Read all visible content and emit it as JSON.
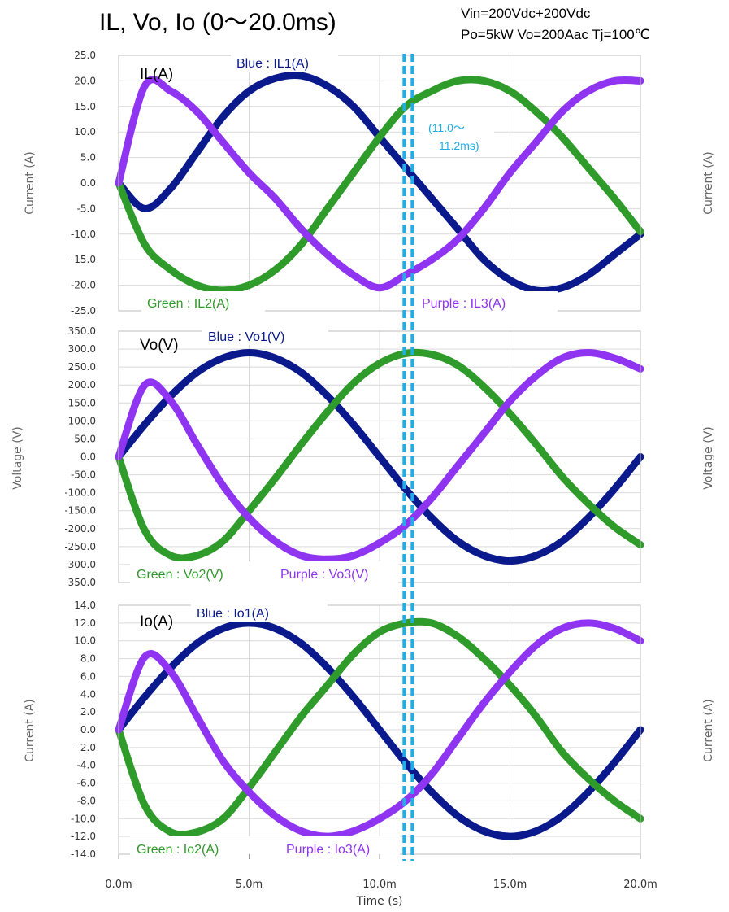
{
  "header": {
    "title": "IL, Vo, Io (0～20.0ms)",
    "conditions_line1": "Vin=200Vdc+200Vdc",
    "conditions_line2": "Po=5kW Vo=200Aac  Tj=100℃"
  },
  "x_axis": {
    "label": "Time (s)",
    "ticks": [
      "0.0m",
      "5.0m",
      "10.0m",
      "15.0m",
      "20.0m"
    ]
  },
  "colors": {
    "blue": "#0a1a8c",
    "green": "#2f9b2a",
    "purple": "#8f35f2",
    "marker": "#1eaee8",
    "grid": "#d9d9d9"
  },
  "marker_window": {
    "label_line1": "(11.0～",
    "label_line2": "11.2ms)",
    "x_range_ms": [
      11.0,
      11.2
    ]
  },
  "panels": [
    {
      "id": "il",
      "title": "IL(A)",
      "ylabel": "Current (A)",
      "right_ylabel": "Current (A)",
      "yticks": [
        "25.0",
        "20.0",
        "15.0",
        "10.0",
        "5.0",
        "0.0",
        "-5.0",
        "-10.0",
        "-15.0",
        "-20.0",
        "-25.0"
      ],
      "legend": {
        "blue": "Blue : IL1(A)",
        "green": "Green : IL2(A)",
        "purple": "Purple : IL3(A)"
      }
    },
    {
      "id": "vo",
      "title": "Vo(V)",
      "ylabel": "Voltage (V)",
      "right_ylabel": "Voltage (V)",
      "yticks": [
        "350.0",
        "300.0",
        "250.0",
        "200.0",
        "150.0",
        "100.0",
        "50.0",
        "0.0",
        "-50.0",
        "-100.0",
        "-150.0",
        "-200.0",
        "-250.0",
        "-300.0",
        "-350.0"
      ],
      "legend": {
        "blue": "Blue : Vo1(V)",
        "green": "Green : Vo2(V)",
        "purple": "Purple : Vo3(V)"
      }
    },
    {
      "id": "io",
      "title": "Io(A)",
      "ylabel": "Current (A)",
      "right_ylabel": "Current (A)",
      "yticks": [
        "14.0",
        "12.0",
        "10.0",
        "8.0",
        "6.0",
        "4.0",
        "2.0",
        "0.0",
        "-2.0",
        "-4.0",
        "-6.0",
        "-8.0",
        "-10.0",
        "-12.0",
        "-14.0"
      ],
      "legend": {
        "blue": "Blue : Io1(A)",
        "green": "Green : Io2(A)",
        "purple": "Purple : Io3(A)"
      }
    }
  ],
  "chart_data": [
    {
      "type": "line",
      "title": "IL(A)",
      "xlabel": "Time (s)",
      "ylabel": "Current (A)",
      "xlim": [
        0,
        20
      ],
      "ylim": [
        -25,
        25
      ],
      "grid": true,
      "x": [
        0,
        1,
        2,
        3,
        4,
        5,
        6,
        7,
        8,
        9,
        10,
        11,
        12,
        13,
        14,
        15,
        16,
        17,
        18,
        19,
        20
      ],
      "series": [
        {
          "name": "Blue : IL1(A)",
          "color": "#0a1a8c",
          "values": [
            0,
            -5,
            -1,
            6,
            13,
            18,
            20.5,
            21,
            19,
            15,
            9,
            3,
            -3,
            -9,
            -15,
            -19,
            -21,
            -20.5,
            -18,
            -14,
            -10
          ]
        },
        {
          "name": "Green : IL2(A)",
          "color": "#2f9b2a",
          "values": [
            0,
            -12,
            -17,
            -20,
            -21,
            -20,
            -17,
            -12,
            -5,
            2,
            9,
            15,
            18,
            20,
            20,
            18,
            14,
            9,
            3,
            -3,
            -9.5
          ]
        },
        {
          "name": "Purple : IL3(A)",
          "color": "#8f35f2",
          "values": [
            0,
            19,
            18,
            14,
            8,
            2,
            -3,
            -9,
            -14,
            -18,
            -20.5,
            -18,
            -15,
            -11,
            -5,
            2,
            8,
            14,
            18,
            20,
            20
          ]
        }
      ]
    },
    {
      "type": "line",
      "title": "Vo(V)",
      "xlabel": "Time (s)",
      "ylabel": "Voltage (V)",
      "xlim": [
        0,
        20
      ],
      "ylim": [
        -350,
        350
      ],
      "grid": true,
      "x": [
        0,
        1,
        2,
        3,
        4,
        5,
        6,
        7,
        8,
        9,
        10,
        11,
        12,
        13,
        14,
        15,
        16,
        17,
        18,
        19,
        20
      ],
      "series": [
        {
          "name": "Blue : Vo1(V)",
          "color": "#0a1a8c",
          "values": [
            0,
            90,
            170,
            235,
            275,
            290,
            275,
            235,
            170,
            90,
            0,
            -90,
            -170,
            -235,
            -275,
            -290,
            -275,
            -235,
            -170,
            -90,
            0
          ]
        },
        {
          "name": "Green : Vo2(V)",
          "color": "#2f9b2a",
          "values": [
            0,
            -205,
            -275,
            -275,
            -235,
            -150,
            -60,
            35,
            125,
            205,
            260,
            288,
            285,
            255,
            195,
            120,
            35,
            -55,
            -130,
            -195,
            -245
          ]
        },
        {
          "name": "Purple : Vo3(V)",
          "color": "#8f35f2",
          "values": [
            0,
            200,
            155,
            35,
            -80,
            -170,
            -235,
            -275,
            -285,
            -275,
            -240,
            -190,
            -115,
            -25,
            65,
            155,
            225,
            275,
            290,
            275,
            245
          ]
        }
      ]
    },
    {
      "type": "line",
      "title": "Io(A)",
      "xlabel": "Time (s)",
      "ylabel": "Current (A)",
      "xlim": [
        0,
        20
      ],
      "ylim": [
        -14,
        14
      ],
      "grid": true,
      "x": [
        0,
        1,
        2,
        3,
        4,
        5,
        6,
        7,
        8,
        9,
        10,
        11,
        12,
        13,
        14,
        15,
        16,
        17,
        18,
        19,
        20
      ],
      "series": [
        {
          "name": "Blue : Io1(A)",
          "color": "#0a1a8c",
          "values": [
            0,
            3.7,
            7,
            9.7,
            11.4,
            12,
            11.4,
            9.7,
            7,
            3.7,
            0,
            -3.7,
            -7,
            -9.7,
            -11.4,
            -12,
            -11.4,
            -9.7,
            -7,
            -3.7,
            0
          ]
        },
        {
          "name": "Green : Io2(A)",
          "color": "#2f9b2a",
          "values": [
            0,
            -8.5,
            -11.5,
            -11.5,
            -10,
            -6.5,
            -2.5,
            1.5,
            5,
            8.5,
            11,
            12,
            12,
            10.5,
            8,
            5,
            1.5,
            -2.5,
            -5.5,
            -8,
            -10
          ]
        },
        {
          "name": "Purple : Io3(A)",
          "color": "#8f35f2",
          "values": [
            0,
            8.2,
            6.5,
            1.5,
            -3.5,
            -7,
            -9.7,
            -11.4,
            -12,
            -11.4,
            -10,
            -8,
            -5,
            -1,
            3,
            6.5,
            9.5,
            11.4,
            12,
            11.4,
            10
          ]
        }
      ]
    }
  ]
}
